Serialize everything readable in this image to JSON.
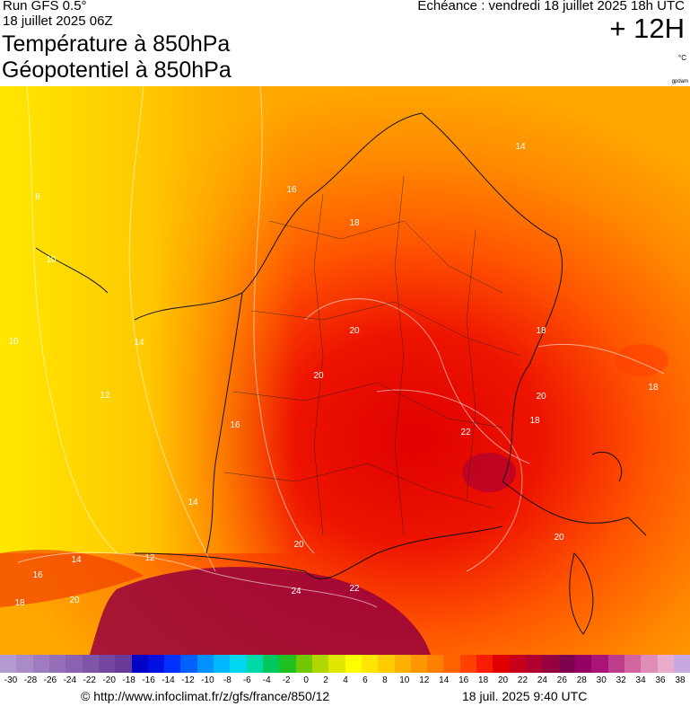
{
  "header": {
    "run": "Run GFS 0.5°",
    "run_date": "18 juillet 2025 06Z",
    "title_line1": "Température à 850hPa",
    "title_line2": "Géopotentiel à 850hPa",
    "valid": "Echéance : vendredi 18 juillet 2025 18h UTC",
    "lead_time": "+ 12H",
    "unit": "°C",
    "brand": "gpdam"
  },
  "map": {
    "region": "France",
    "isotherm_labels": [
      "14",
      "16",
      "18",
      "8",
      "10",
      "10",
      "14",
      "12",
      "16",
      "14",
      "20",
      "20",
      "18",
      "20",
      "18",
      "22",
      "18",
      "20",
      "16",
      "14",
      "12",
      "20",
      "18",
      "24",
      "22",
      "20"
    ]
  },
  "colorbar": {
    "ticks": [
      "-30",
      "-28",
      "-26",
      "-24",
      "-22",
      "-20",
      "-18",
      "-16",
      "-14",
      "-12",
      "-10",
      "-8",
      "-6",
      "-4",
      "-2",
      "0",
      "2",
      "4",
      "6",
      "8",
      "10",
      "12",
      "14",
      "16",
      "18",
      "20",
      "22",
      "24",
      "26",
      "28",
      "30",
      "32",
      "34",
      "36",
      "38"
    ],
    "colors": [
      "#b39ad0",
      "#a98bc8",
      "#9f7cc0",
      "#9570b8",
      "#8a62b0",
      "#7f55a8",
      "#7448a0",
      "#693a98",
      "#0000c8",
      "#0010e0",
      "#0030ff",
      "#0060ff",
      "#0090ff",
      "#00b8ff",
      "#00d8f0",
      "#00d8a8",
      "#00c860",
      "#20c020",
      "#70c800",
      "#b0d800",
      "#e0e800",
      "#ffff00",
      "#ffe600",
      "#ffcc00",
      "#ffb000",
      "#ff9800",
      "#ff8000",
      "#ff6400",
      "#ff4000",
      "#f81c00",
      "#e00000",
      "#c8001a",
      "#b00030",
      "#96003c",
      "#800050",
      "#960064",
      "#aa1478",
      "#be3c8c",
      "#d264a0",
      "#e08cb8",
      "#eaaccc",
      "#c8a8e0"
    ]
  },
  "footer": {
    "credit": "© http://www.infoclimat.fr/z/gfs/france/850/12",
    "timestamp": "18 juil. 2025  9:40 UTC"
  }
}
